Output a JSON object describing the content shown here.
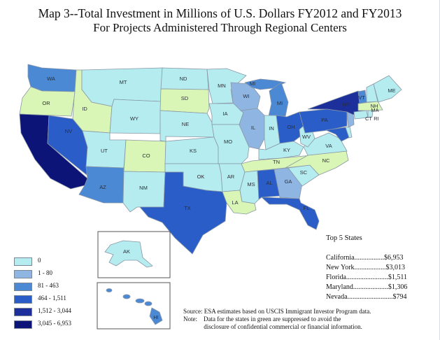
{
  "title": {
    "line1": "Map 3--Total Investment in Millions of U.S. Dollars FY2012 and FY2013",
    "line2": "For Projects Administered Through Regional Centers"
  },
  "colors": {
    "cat0": "#b4ecef",
    "cat1": "#8fb5e2",
    "cat2": "#4b89d5",
    "cat3": "#2a5dc7",
    "cat4": "#1c2f9a",
    "cat5": "#0c1478",
    "suppressed": "#d9f6b6"
  },
  "legend": {
    "items": [
      {
        "label": "0",
        "color": "#b4ecef"
      },
      {
        "label": "1 - 80",
        "color": "#8fb5e2"
      },
      {
        "label": "81 - 463",
        "color": "#4b89d5"
      },
      {
        "label": "464 - 1,511",
        "color": "#2a5dc7"
      },
      {
        "label": "1,512 - 3,044",
        "color": "#1c2f9a"
      },
      {
        "label": "3,045 - 6,953",
        "color": "#0c1478"
      }
    ]
  },
  "states": {
    "WA": "cat2",
    "OR": "suppressed",
    "ID": "suppressed",
    "MT": "cat0",
    "WY": "cat0",
    "CA": "cat5",
    "NV": "cat3",
    "UT": "cat0",
    "AZ": "cat2",
    "CO": "suppressed",
    "NM": "cat0",
    "ND": "cat0",
    "SD": "suppressed",
    "NE": "cat0",
    "KS": "cat0",
    "OK": "cat0",
    "TX": "cat3",
    "MN": "cat0",
    "IA": "cat0",
    "MO": "cat0",
    "AR": "cat0",
    "LA": "suppressed",
    "WI": "cat1",
    "IL": "cat1",
    "MI": "cat2",
    "IN": "cat0",
    "OH": "cat3",
    "KY": "cat0",
    "TN": "suppressed",
    "MS": "cat0",
    "AL": "cat3",
    "GA": "cat1",
    "FL": "cat3",
    "SC": "cat0",
    "NC": "suppressed",
    "VA": "cat0",
    "WV": "cat0",
    "PA": "cat3",
    "NY": "cat4",
    "VT": "cat2",
    "NH": "cat0",
    "ME": "cat0",
    "MA": "suppressed",
    "CT": "cat0",
    "RI": "cat0",
    "NJ": "cat1",
    "DE": "cat0",
    "MD": "cat3",
    "AK": "cat0",
    "HI": "cat2"
  },
  "top5": {
    "title": "Top 5 States",
    "items": [
      "California.................$6,953",
      "New York..................$3,013",
      "Florida........................$1,511",
      "Maryland....................$1,306",
      "Nevada..........................$794"
    ]
  },
  "source": {
    "line1": "Source: ESA estimates based on USCIS Immigrant Investor Program  data.",
    "line2": "Note:    Data for the states in green are suppressed to avoid the",
    "line3": "             disclosure of confidential commercial or financial information."
  }
}
